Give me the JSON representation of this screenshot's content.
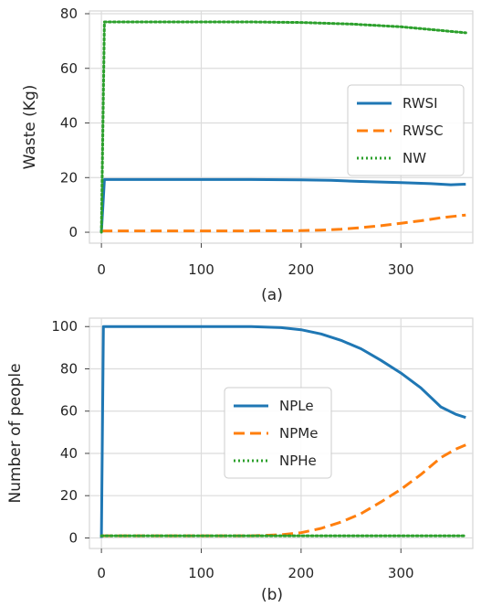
{
  "chart_data": [
    {
      "type": "line",
      "caption": "(a)",
      "xlabel": "",
      "ylabel": "Waste (Kg)",
      "xlim": [
        -12,
        372
      ],
      "ylim": [
        -4,
        81
      ],
      "xticks": [
        0,
        100,
        200,
        300
      ],
      "yticks": [
        0,
        20,
        40,
        60,
        80
      ],
      "grid": true,
      "legend": "center-right",
      "series": [
        {
          "name": "RWSI",
          "color": "#1f77b4",
          "style": "solid",
          "x": [
            0,
            3,
            50,
            100,
            150,
            200,
            230,
            260,
            300,
            330,
            350,
            365
          ],
          "y": [
            0,
            19.3,
            19.3,
            19.3,
            19.3,
            19.2,
            19.0,
            18.6,
            18.2,
            17.8,
            17.4,
            17.6
          ]
        },
        {
          "name": "RWSC",
          "color": "#ff7f0e",
          "style": "dashed",
          "x": [
            0,
            50,
            100,
            150,
            200,
            220,
            240,
            260,
            280,
            300,
            320,
            340,
            365
          ],
          "y": [
            0.5,
            0.5,
            0.5,
            0.5,
            0.6,
            0.8,
            1.1,
            1.7,
            2.4,
            3.3,
            4.2,
            5.3,
            6.3
          ]
        },
        {
          "name": "NW",
          "color": "#2ca02c",
          "style": "dotted",
          "x": [
            0,
            3,
            50,
            100,
            150,
            200,
            250,
            300,
            330,
            365
          ],
          "y": [
            0,
            77,
            77,
            77,
            77,
            76.8,
            76.2,
            75.2,
            74.2,
            73
          ]
        }
      ]
    },
    {
      "type": "line",
      "caption": "(b)",
      "xlabel": "",
      "ylabel": "Number of people",
      "xlim": [
        -12,
        372
      ],
      "ylim": [
        -5,
        104
      ],
      "xticks": [
        0,
        100,
        200,
        300
      ],
      "yticks": [
        0,
        20,
        40,
        60,
        80,
        100
      ],
      "grid": true,
      "legend": "center",
      "series": [
        {
          "name": "NPLe",
          "color": "#1f77b4",
          "style": "solid",
          "x": [
            0,
            2,
            50,
            100,
            150,
            180,
            200,
            220,
            240,
            260,
            280,
            300,
            320,
            340,
            355,
            365
          ],
          "y": [
            0,
            100,
            100,
            100,
            100,
            99.5,
            98.5,
            96.5,
            93.5,
            89.5,
            84,
            78,
            71,
            62,
            58.5,
            57
          ]
        },
        {
          "name": "NPMe",
          "color": "#ff7f0e",
          "style": "dashed",
          "x": [
            0,
            50,
            100,
            150,
            180,
            200,
            220,
            240,
            260,
            280,
            300,
            320,
            340,
            355,
            365
          ],
          "y": [
            1,
            1,
            1,
            1,
            1.5,
            2.5,
            4.5,
            7.5,
            11.5,
            17,
            23,
            30,
            38,
            42,
            44
          ]
        },
        {
          "name": "NPHe",
          "color": "#2ca02c",
          "style": "dotted",
          "x": [
            0,
            100,
            200,
            300,
            365
          ],
          "y": [
            1,
            1,
            1,
            1,
            1
          ]
        }
      ]
    }
  ]
}
